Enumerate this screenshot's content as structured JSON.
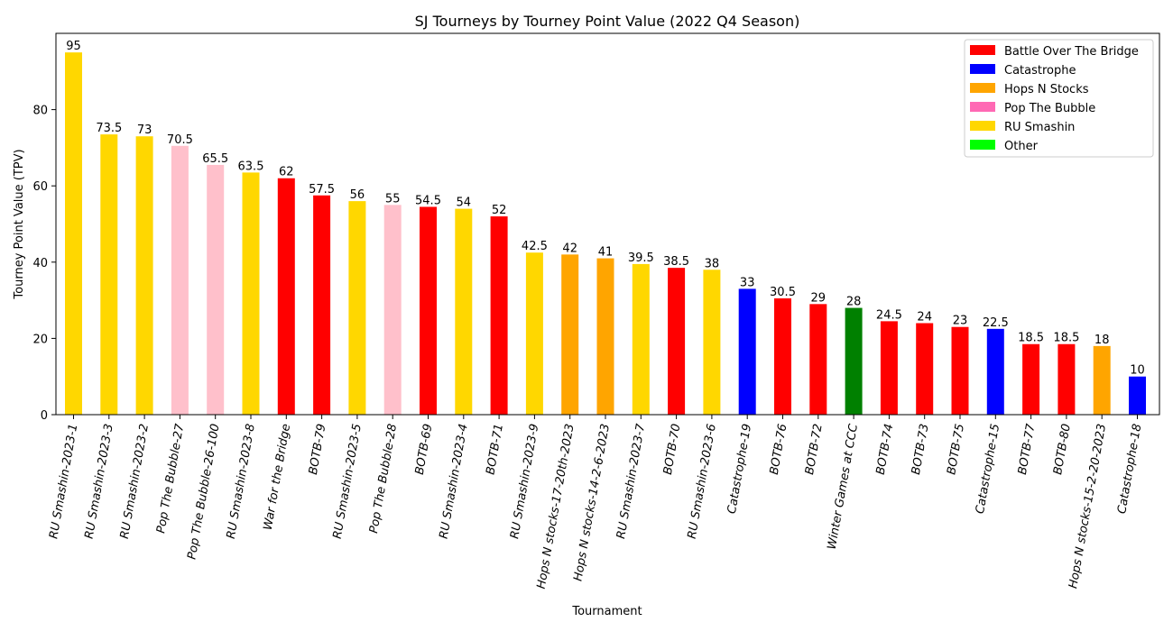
{
  "chart_data": {
    "type": "bar",
    "title": "SJ Tourneys by Tourney Point Value (2022 Q4 Season)",
    "xlabel": "Tournament",
    "ylabel": "Tourney Point Value (TPV)",
    "ylim": [
      0,
      100
    ],
    "yticks": [
      0,
      20,
      40,
      60,
      80
    ],
    "legend_position": "top-right",
    "grid": false,
    "legend": [
      {
        "label": "Battle Over The Bridge",
        "color": "#ff0000"
      },
      {
        "label": "Catastrophe",
        "color": "#0000ff"
      },
      {
        "label": "Hops N Stocks",
        "color": "#ffa500"
      },
      {
        "label": "Pop The Bubble",
        "color": "#ff69b4"
      },
      {
        "label": "RU Smashin",
        "color": "#ffd700"
      },
      {
        "label": "Other",
        "color": "#00ff00"
      }
    ],
    "bars": [
      {
        "category": "RU Smashin-2023-1",
        "value": 95,
        "label": "95",
        "color": "#ffd700"
      },
      {
        "category": "RU Smashin-2023-3",
        "value": 73.5,
        "label": "73.5",
        "color": "#ffd700"
      },
      {
        "category": "RU Smashin-2023-2",
        "value": 73,
        "label": "73",
        "color": "#ffd700"
      },
      {
        "category": "Pop The Bubble-27",
        "value": 70.5,
        "label": "70.5",
        "color": "#ffc0cb"
      },
      {
        "category": "Pop The Bubble-26-100",
        "value": 65.5,
        "label": "65.5",
        "color": "#ffc0cb"
      },
      {
        "category": "RU Smashin-2023-8",
        "value": 63.5,
        "label": "63.5",
        "color": "#ffd700"
      },
      {
        "category": "War for the Bridge",
        "value": 62,
        "label": "62",
        "color": "#ff0000"
      },
      {
        "category": "BOTB-79",
        "value": 57.5,
        "label": "57.5",
        "color": "#ff0000"
      },
      {
        "category": "RU Smashin-2023-5",
        "value": 56,
        "label": "56",
        "color": "#ffd700"
      },
      {
        "category": "Pop The Bubble-28",
        "value": 55,
        "label": "55",
        "color": "#ffc0cb"
      },
      {
        "category": "BOTB-69",
        "value": 54.5,
        "label": "54.5",
        "color": "#ff0000"
      },
      {
        "category": "RU Smashin-2023-4",
        "value": 54,
        "label": "54",
        "color": "#ffd700"
      },
      {
        "category": "BOTB-71",
        "value": 52,
        "label": "52",
        "color": "#ff0000"
      },
      {
        "category": "RU Smashin-2023-9",
        "value": 42.5,
        "label": "42.5",
        "color": "#ffd700"
      },
      {
        "category": "Hops N stocks-17-20th-2023",
        "value": 42,
        "label": "42",
        "color": "#ffa500"
      },
      {
        "category": "Hops N stocks-14-2-6-2023",
        "value": 41,
        "label": "41",
        "color": "#ffa500"
      },
      {
        "category": "RU Smashin-2023-7",
        "value": 39.5,
        "label": "39.5",
        "color": "#ffd700"
      },
      {
        "category": "BOTB-70",
        "value": 38.5,
        "label": "38.5",
        "color": "#ff0000"
      },
      {
        "category": "RU Smashin-2023-6",
        "value": 38,
        "label": "38",
        "color": "#ffd700"
      },
      {
        "category": "Catastrophe-19",
        "value": 33,
        "label": "33",
        "color": "#0000ff"
      },
      {
        "category": "BOTB-76",
        "value": 30.5,
        "label": "30.5",
        "color": "#ff0000"
      },
      {
        "category": "BOTB-72",
        "value": 29,
        "label": "29",
        "color": "#ff0000"
      },
      {
        "category": "Winter Games at CCC",
        "value": 28,
        "label": "28",
        "color": "#008000"
      },
      {
        "category": "BOTB-74",
        "value": 24.5,
        "label": "24.5",
        "color": "#ff0000"
      },
      {
        "category": "BOTB-73",
        "value": 24,
        "label": "24",
        "color": "#ff0000"
      },
      {
        "category": "BOTB-75",
        "value": 23,
        "label": "23",
        "color": "#ff0000"
      },
      {
        "category": "Catastrophe-15",
        "value": 22.5,
        "label": "22.5",
        "color": "#0000ff"
      },
      {
        "category": "BOTB-77",
        "value": 18.5,
        "label": "18.5",
        "color": "#ff0000"
      },
      {
        "category": "BOTB-80",
        "value": 18.5,
        "label": "18.5",
        "color": "#ff0000"
      },
      {
        "category": "Hops N stocks-15-2-20-2023",
        "value": 18,
        "label": "18",
        "color": "#ffa500"
      },
      {
        "category": "Catastrophe-18",
        "value": 10,
        "label": "10",
        "color": "#0000ff"
      }
    ]
  }
}
